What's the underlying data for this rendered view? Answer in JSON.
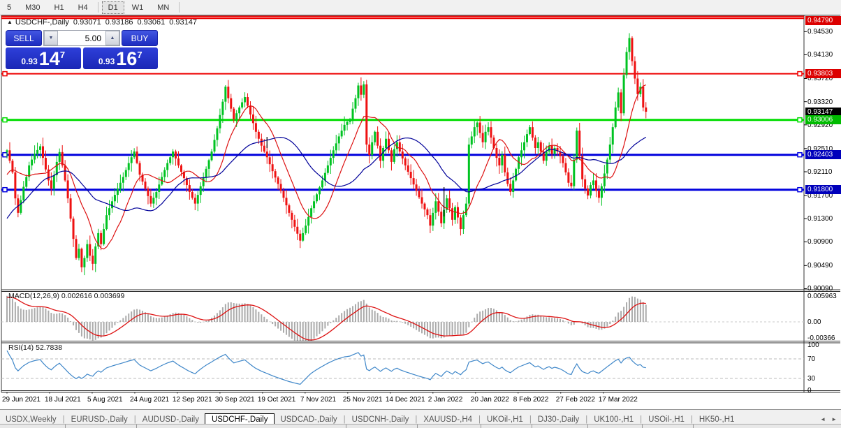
{
  "toolbar": {
    "timeframes": [
      {
        "label": "5",
        "active": false
      },
      {
        "label": "M30",
        "active": false
      },
      {
        "label": "H1",
        "active": false
      },
      {
        "label": "H4",
        "active": false
      },
      {
        "label": "D1",
        "active": true
      },
      {
        "label": "W1",
        "active": false
      },
      {
        "label": "MN",
        "active": false
      }
    ]
  },
  "quote": {
    "collapse_icon": "up-triangle",
    "title": "USDCHF-,Daily",
    "open": "0.93071",
    "high": "0.93186",
    "low": "0.93061",
    "close": "0.93147"
  },
  "trade_panel": {
    "sell_label": "SELL",
    "buy_label": "BUY",
    "volume": "5.00",
    "volume_down_icon": "down-arrow",
    "volume_up_icon": "up-arrow",
    "sell_price": {
      "prefix": "0.93",
      "big": "14",
      "sup": "7"
    },
    "buy_price": {
      "prefix": "0.93",
      "big": "16",
      "sup": "7"
    }
  },
  "price_axis": {
    "ticks": [
      "0.94530",
      "0.94130",
      "0.93720",
      "0.93320",
      "0.92920",
      "0.92510",
      "0.92110",
      "0.91700",
      "0.91300",
      "0.90900",
      "0.90490",
      "0.90090"
    ],
    "chips": [
      {
        "value": "0.94790",
        "color": "#dc0000"
      },
      {
        "value": "0.93803",
        "color": "#dc0000"
      },
      {
        "value": "0.93147",
        "color": "#000000"
      },
      {
        "value": "0.93006",
        "color": "#00bb00"
      },
      {
        "value": "0.92403",
        "color": "#0000bb"
      },
      {
        "value": "0.91800",
        "color": "#0000bb"
      }
    ]
  },
  "indicators": {
    "macd": {
      "label": "MACD(12,26,9)",
      "value_main": "0.002616",
      "value_signal": "0.003699",
      "axis_labels": [
        "0.005963",
        "0.00",
        "-0.00366"
      ]
    },
    "rsi": {
      "label": "RSI(14)",
      "value": "52.7838",
      "axis_labels": [
        "100",
        "70",
        "30",
        "0"
      ]
    }
  },
  "date_axis": {
    "labels": [
      "29 Jun 2021",
      "18 Jul 2021",
      "5 Aug 2021",
      "24 Aug 2021",
      "12 Sep 2021",
      "30 Sep 2021",
      "19 Oct 2021",
      "7 Nov 2021",
      "25 Nov 2021",
      "14 Dec 2021",
      "2 Jan 2022",
      "20 Jan 2022",
      "8 Feb 2022",
      "27 Feb 2022",
      "17 Mar 2022"
    ]
  },
  "tabs": {
    "items": [
      {
        "label": "USDX,Weekly",
        "active": false
      },
      {
        "label": "EURUSD-,Daily",
        "active": false
      },
      {
        "label": "AUDUSD-,Daily",
        "active": false
      },
      {
        "label": "USDCHF-,Daily",
        "active": true
      },
      {
        "label": "USDCAD-,Daily",
        "active": false
      },
      {
        "label": "USDCNH-,Daily",
        "active": false
      },
      {
        "label": "XAUUSD-,H4",
        "active": false
      },
      {
        "label": "UKOil-,H1",
        "active": false
      },
      {
        "label": "DJ30-,Daily",
        "active": false
      },
      {
        "label": "UK100-,H1",
        "active": false
      },
      {
        "label": "USOil-,H1",
        "active": false
      },
      {
        "label": "HK50-,H1",
        "active": false
      }
    ],
    "scroll_left_icon": "left-arrow",
    "scroll_right_icon": "right-arrow"
  },
  "chart_data": {
    "type": "candlestick",
    "symbol": "USDCHF-",
    "timeframe": "Daily",
    "last_ohlc": {
      "open": 0.93071,
      "high": 0.93186,
      "low": 0.93061,
      "close": 0.93147
    },
    "price_axis_range": [
      0.9009,
      0.9479
    ],
    "bars": 232,
    "up_color": "#00c322",
    "down_color": "#ee1111",
    "close_keyframes": [
      [
        0,
        0.9248
      ],
      [
        1,
        0.923
      ],
      [
        2,
        0.921
      ],
      [
        3,
        0.9165
      ],
      [
        4,
        0.914
      ],
      [
        5,
        0.9162
      ],
      [
        6,
        0.9185
      ],
      [
        7,
        0.9202
      ],
      [
        8,
        0.9222
      ],
      [
        10,
        0.9242
      ],
      [
        12,
        0.9255
      ],
      [
        13,
        0.9235
      ],
      [
        14,
        0.9215
      ],
      [
        15,
        0.9196
      ],
      [
        16,
        0.9182
      ],
      [
        17,
        0.9205
      ],
      [
        18,
        0.9228
      ],
      [
        19,
        0.9245
      ],
      [
        20,
        0.9222
      ],
      [
        21,
        0.9196
      ],
      [
        22,
        0.9165
      ],
      [
        23,
        0.913
      ],
      [
        24,
        0.9095
      ],
      [
        25,
        0.9062
      ],
      [
        26,
        0.9078
      ],
      [
        27,
        0.9046
      ],
      [
        28,
        0.9062
      ],
      [
        29,
        0.9086
      ],
      [
        30,
        0.9066
      ],
      [
        31,
        0.9052
      ],
      [
        32,
        0.9082
      ],
      [
        33,
        0.9105
      ],
      [
        34,
        0.9086
      ],
      [
        35,
        0.9112
      ],
      [
        36,
        0.9136
      ],
      [
        38,
        0.916
      ],
      [
        40,
        0.9182
      ],
      [
        42,
        0.9202
      ],
      [
        44,
        0.9226
      ],
      [
        46,
        0.9246
      ],
      [
        47,
        0.9226
      ],
      [
        48,
        0.9206
      ],
      [
        50,
        0.9182
      ],
      [
        52,
        0.9156
      ],
      [
        54,
        0.9176
      ],
      [
        56,
        0.9202
      ],
      [
        58,
        0.9226
      ],
      [
        60,
        0.9246
      ],
      [
        62,
        0.9222
      ],
      [
        64,
        0.92
      ],
      [
        66,
        0.9176
      ],
      [
        68,
        0.9156
      ],
      [
        70,
        0.9186
      ],
      [
        72,
        0.9216
      ],
      [
        74,
        0.9246
      ],
      [
        76,
        0.9286
      ],
      [
        78,
        0.9332
      ],
      [
        79,
        0.9358
      ],
      [
        80,
        0.9338
      ],
      [
        82,
        0.9302
      ],
      [
        84,
        0.9322
      ],
      [
        86,
        0.934
      ],
      [
        88,
        0.931
      ],
      [
        90,
        0.928
      ],
      [
        92,
        0.9256
      ],
      [
        94,
        0.9236
      ],
      [
        96,
        0.9212
      ],
      [
        98,
        0.919
      ],
      [
        100,
        0.9166
      ],
      [
        102,
        0.914
      ],
      [
        104,
        0.9116
      ],
      [
        106,
        0.9092
      ],
      [
        108,
        0.9118
      ],
      [
        110,
        0.9148
      ],
      [
        112,
        0.9172
      ],
      [
        114,
        0.9196
      ],
      [
        116,
        0.9222
      ],
      [
        118,
        0.9248
      ],
      [
        120,
        0.9272
      ],
      [
        122,
        0.9292
      ],
      [
        124,
        0.9302
      ],
      [
        126,
        0.9338
      ],
      [
        127,
        0.936
      ],
      [
        128,
        0.9344
      ],
      [
        129,
        0.9362
      ],
      [
        130,
        0.9258
      ],
      [
        131,
        0.924
      ],
      [
        132,
        0.9262
      ],
      [
        133,
        0.928
      ],
      [
        134,
        0.9256
      ],
      [
        135,
        0.923
      ],
      [
        136,
        0.9252
      ],
      [
        137,
        0.9268
      ],
      [
        138,
        0.9248
      ],
      [
        139,
        0.9228
      ],
      [
        140,
        0.925
      ],
      [
        141,
        0.9262
      ],
      [
        142,
        0.9246
      ],
      [
        144,
        0.9222
      ],
      [
        146,
        0.92
      ],
      [
        148,
        0.9178
      ],
      [
        150,
        0.9156
      ],
      [
        152,
        0.9136
      ],
      [
        153,
        0.9118
      ],
      [
        154,
        0.914
      ],
      [
        155,
        0.916
      ],
      [
        156,
        0.9142
      ],
      [
        157,
        0.9122
      ],
      [
        158,
        0.9145
      ],
      [
        159,
        0.9165
      ],
      [
        160,
        0.9148
      ],
      [
        161,
        0.9128
      ],
      [
        162,
        0.915
      ],
      [
        163,
        0.9132
      ],
      [
        164,
        0.9112
      ],
      [
        165,
        0.9136
      ],
      [
        166,
        0.9156
      ],
      [
        167,
        0.9258
      ],
      [
        168,
        0.9272
      ],
      [
        169,
        0.9288
      ],
      [
        170,
        0.9296
      ],
      [
        171,
        0.9278
      ],
      [
        172,
        0.9262
      ],
      [
        173,
        0.928
      ],
      [
        174,
        0.9288
      ],
      [
        175,
        0.927
      ],
      [
        176,
        0.9252
      ],
      [
        177,
        0.9235
      ],
      [
        178,
        0.9222
      ],
      [
        179,
        0.924
      ],
      [
        180,
        0.921
      ],
      [
        181,
        0.919
      ],
      [
        182,
        0.9176
      ],
      [
        183,
        0.9196
      ],
      [
        184,
        0.9216
      ],
      [
        185,
        0.9236
      ],
      [
        186,
        0.9248
      ],
      [
        187,
        0.9262
      ],
      [
        188,
        0.9276
      ],
      [
        189,
        0.9288
      ],
      [
        190,
        0.927
      ],
      [
        191,
        0.9252
      ],
      [
        192,
        0.9262
      ],
      [
        193,
        0.9246
      ],
      [
        194,
        0.923
      ],
      [
        195,
        0.9246
      ],
      [
        196,
        0.9256
      ],
      [
        197,
        0.9242
      ],
      [
        198,
        0.9252
      ],
      [
        199,
        0.9246
      ],
      [
        200,
        0.9238
      ],
      [
        201,
        0.9226
      ],
      [
        202,
        0.921
      ],
      [
        203,
        0.9192
      ],
      [
        204,
        0.9186
      ],
      [
        205,
        0.9232
      ],
      [
        206,
        0.9282
      ],
      [
        207,
        0.9238
      ],
      [
        208,
        0.9198
      ],
      [
        209,
        0.9182
      ],
      [
        210,
        0.917
      ],
      [
        211,
        0.9188
      ],
      [
        212,
        0.9196
      ],
      [
        213,
        0.9178
      ],
      [
        214,
        0.9166
      ],
      [
        215,
        0.9186
      ],
      [
        216,
        0.9208
      ],
      [
        217,
        0.9232
      ],
      [
        218,
        0.9258
      ],
      [
        219,
        0.9288
      ],
      [
        220,
        0.9322
      ],
      [
        221,
        0.9348
      ],
      [
        222,
        0.9312
      ],
      [
        223,
        0.9378
      ],
      [
        224,
        0.9418
      ],
      [
        225,
        0.9442
      ],
      [
        226,
        0.9402
      ],
      [
        227,
        0.9372
      ],
      [
        228,
        0.9345
      ],
      [
        229,
        0.9358
      ],
      [
        230,
        0.9322
      ],
      [
        231,
        0.93147
      ]
    ],
    "prehistory_keyframes": [
      [
        0,
        0.8965
      ],
      [
        10,
        0.901
      ],
      [
        20,
        0.908
      ],
      [
        28,
        0.915
      ],
      [
        34,
        0.9205
      ],
      [
        39,
        0.924
      ]
    ],
    "moving_averages": [
      {
        "period": 12,
        "color": "#dd1111"
      },
      {
        "period": 30,
        "color": "#000099"
      }
    ],
    "hlines": [
      {
        "price": 0.94818,
        "color": "#ee0000",
        "width": 2,
        "end_squares": false
      },
      {
        "price": 0.9476,
        "color": "#ee0000",
        "width": 2,
        "end_squares": false
      },
      {
        "price": 0.93803,
        "color": "#ee0000",
        "width": 2,
        "end_squares": true
      },
      {
        "price": 0.93006,
        "color": "#00dd00",
        "width": 3,
        "end_squares": true
      },
      {
        "price": 0.92403,
        "color": "#0000dd",
        "width": 3,
        "end_squares": true
      },
      {
        "price": 0.918,
        "color": "#0000dd",
        "width": 3,
        "end_squares": true
      }
    ],
    "vertical_markers": [
      {
        "bar": 94,
        "price_from": 0.92713,
        "price_to": 0.9252
      },
      {
        "bar": 158,
        "price_from": 0.91845,
        "price_to": 0.91338
      }
    ],
    "macd": {
      "fast": 12,
      "slow": 26,
      "signal": 9,
      "histogram_color": "#ababab",
      "signal_color": "#dd1111",
      "current_main": 0.002616,
      "current_signal": 0.003699
    },
    "rsi": {
      "period": 14,
      "color": "#3f87c9",
      "levels": [
        70,
        30
      ],
      "current": 52.7838
    }
  }
}
